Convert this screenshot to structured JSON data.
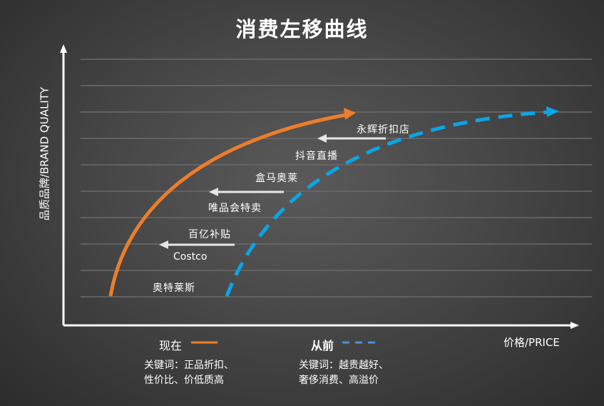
{
  "title": "消费左移曲线",
  "y_axis_label": "品质品牌/BRAND QUALITY",
  "x_axis_label": "价格/PRICE",
  "channels": [
    "永辉折扣店",
    "抖音直播",
    "盒马奥莱",
    "唯品会特卖",
    "百亿补贴",
    "Costco",
    "奥特莱斯"
  ],
  "legend": {
    "now": {
      "label": "现在",
      "color": "#ee7d2a",
      "keywords_line1": "关键词：正品折扣、",
      "keywords_line2": "性价比、价低质高"
    },
    "before": {
      "label": "从前",
      "color": "#0aa5e6",
      "legend_color": "#4a90d9",
      "keywords_line1": "关键词：越贵越好、",
      "keywords_line2": "奢侈消费、高溢价"
    }
  }
}
